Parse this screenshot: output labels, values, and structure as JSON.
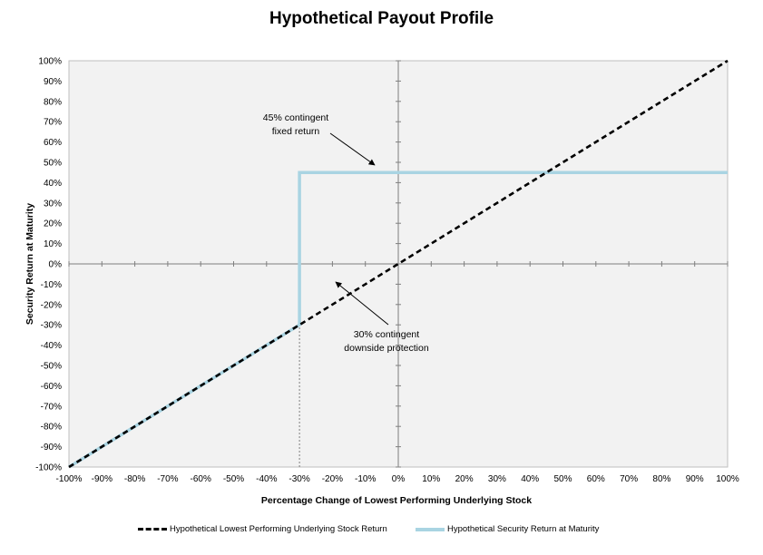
{
  "chart_data": {
    "type": "line",
    "title": "Hypothetical Payout Profile",
    "xlabel": "Percentage Change of Lowest Performing Underlying Stock",
    "ylabel": "Security Return at Maturity",
    "xlim": [
      -100,
      100
    ],
    "ylim": [
      -100,
      100
    ],
    "x_ticks": [
      -100,
      -90,
      -80,
      -70,
      -60,
      -50,
      -40,
      -30,
      -20,
      -10,
      0,
      10,
      20,
      30,
      40,
      50,
      60,
      70,
      80,
      90,
      100
    ],
    "y_ticks": [
      100,
      90,
      80,
      70,
      60,
      50,
      40,
      30,
      20,
      10,
      0,
      -10,
      -20,
      -30,
      -40,
      -50,
      -60,
      -70,
      -80,
      -90,
      -100
    ],
    "x_tick_labels": [
      "-100%",
      "-90%",
      "-80%",
      "-70%",
      "-60%",
      "-50%",
      "-40%",
      "-30%",
      "-20%",
      "-10%",
      "0%",
      "10%",
      "20%",
      "30%",
      "40%",
      "50%",
      "60%",
      "70%",
      "80%",
      "90%",
      "100%"
    ],
    "y_tick_labels": [
      "100%",
      "90%",
      "80%",
      "70%",
      "60%",
      "50%",
      "40%",
      "30%",
      "20%",
      "10%",
      "0%",
      "-10%",
      "-20%",
      "-30%",
      "-40%",
      "-50%",
      "-60%",
      "-70%",
      "-80%",
      "-90%",
      "-100%"
    ],
    "grid": false,
    "legend_position": "bottom",
    "series": [
      {
        "name": "Hypothetical Lowest Performing Underlying Stock Return",
        "style": "dashed",
        "color": "#000000",
        "x": [
          -100,
          100
        ],
        "y": [
          -100,
          100
        ]
      },
      {
        "name": "Hypothetical Security Return at Maturity",
        "style": "solid",
        "color": "#a9d4e2",
        "x": [
          -100,
          -30,
          -30,
          100
        ],
        "y": [
          -100,
          -30,
          45,
          45
        ]
      }
    ],
    "reference_lines": [
      {
        "orientation": "vertical",
        "x": -30,
        "style": "dotted",
        "color": "#7f7f7f"
      }
    ],
    "annotations": [
      {
        "lines": [
          "45% contingent",
          "fixed return"
        ],
        "target": [
          -7,
          50
        ]
      },
      {
        "lines": [
          "30% contingent",
          "downside protection"
        ],
        "target": [
          -20,
          -8
        ]
      }
    ],
    "background_color": "#f2f2f2"
  }
}
